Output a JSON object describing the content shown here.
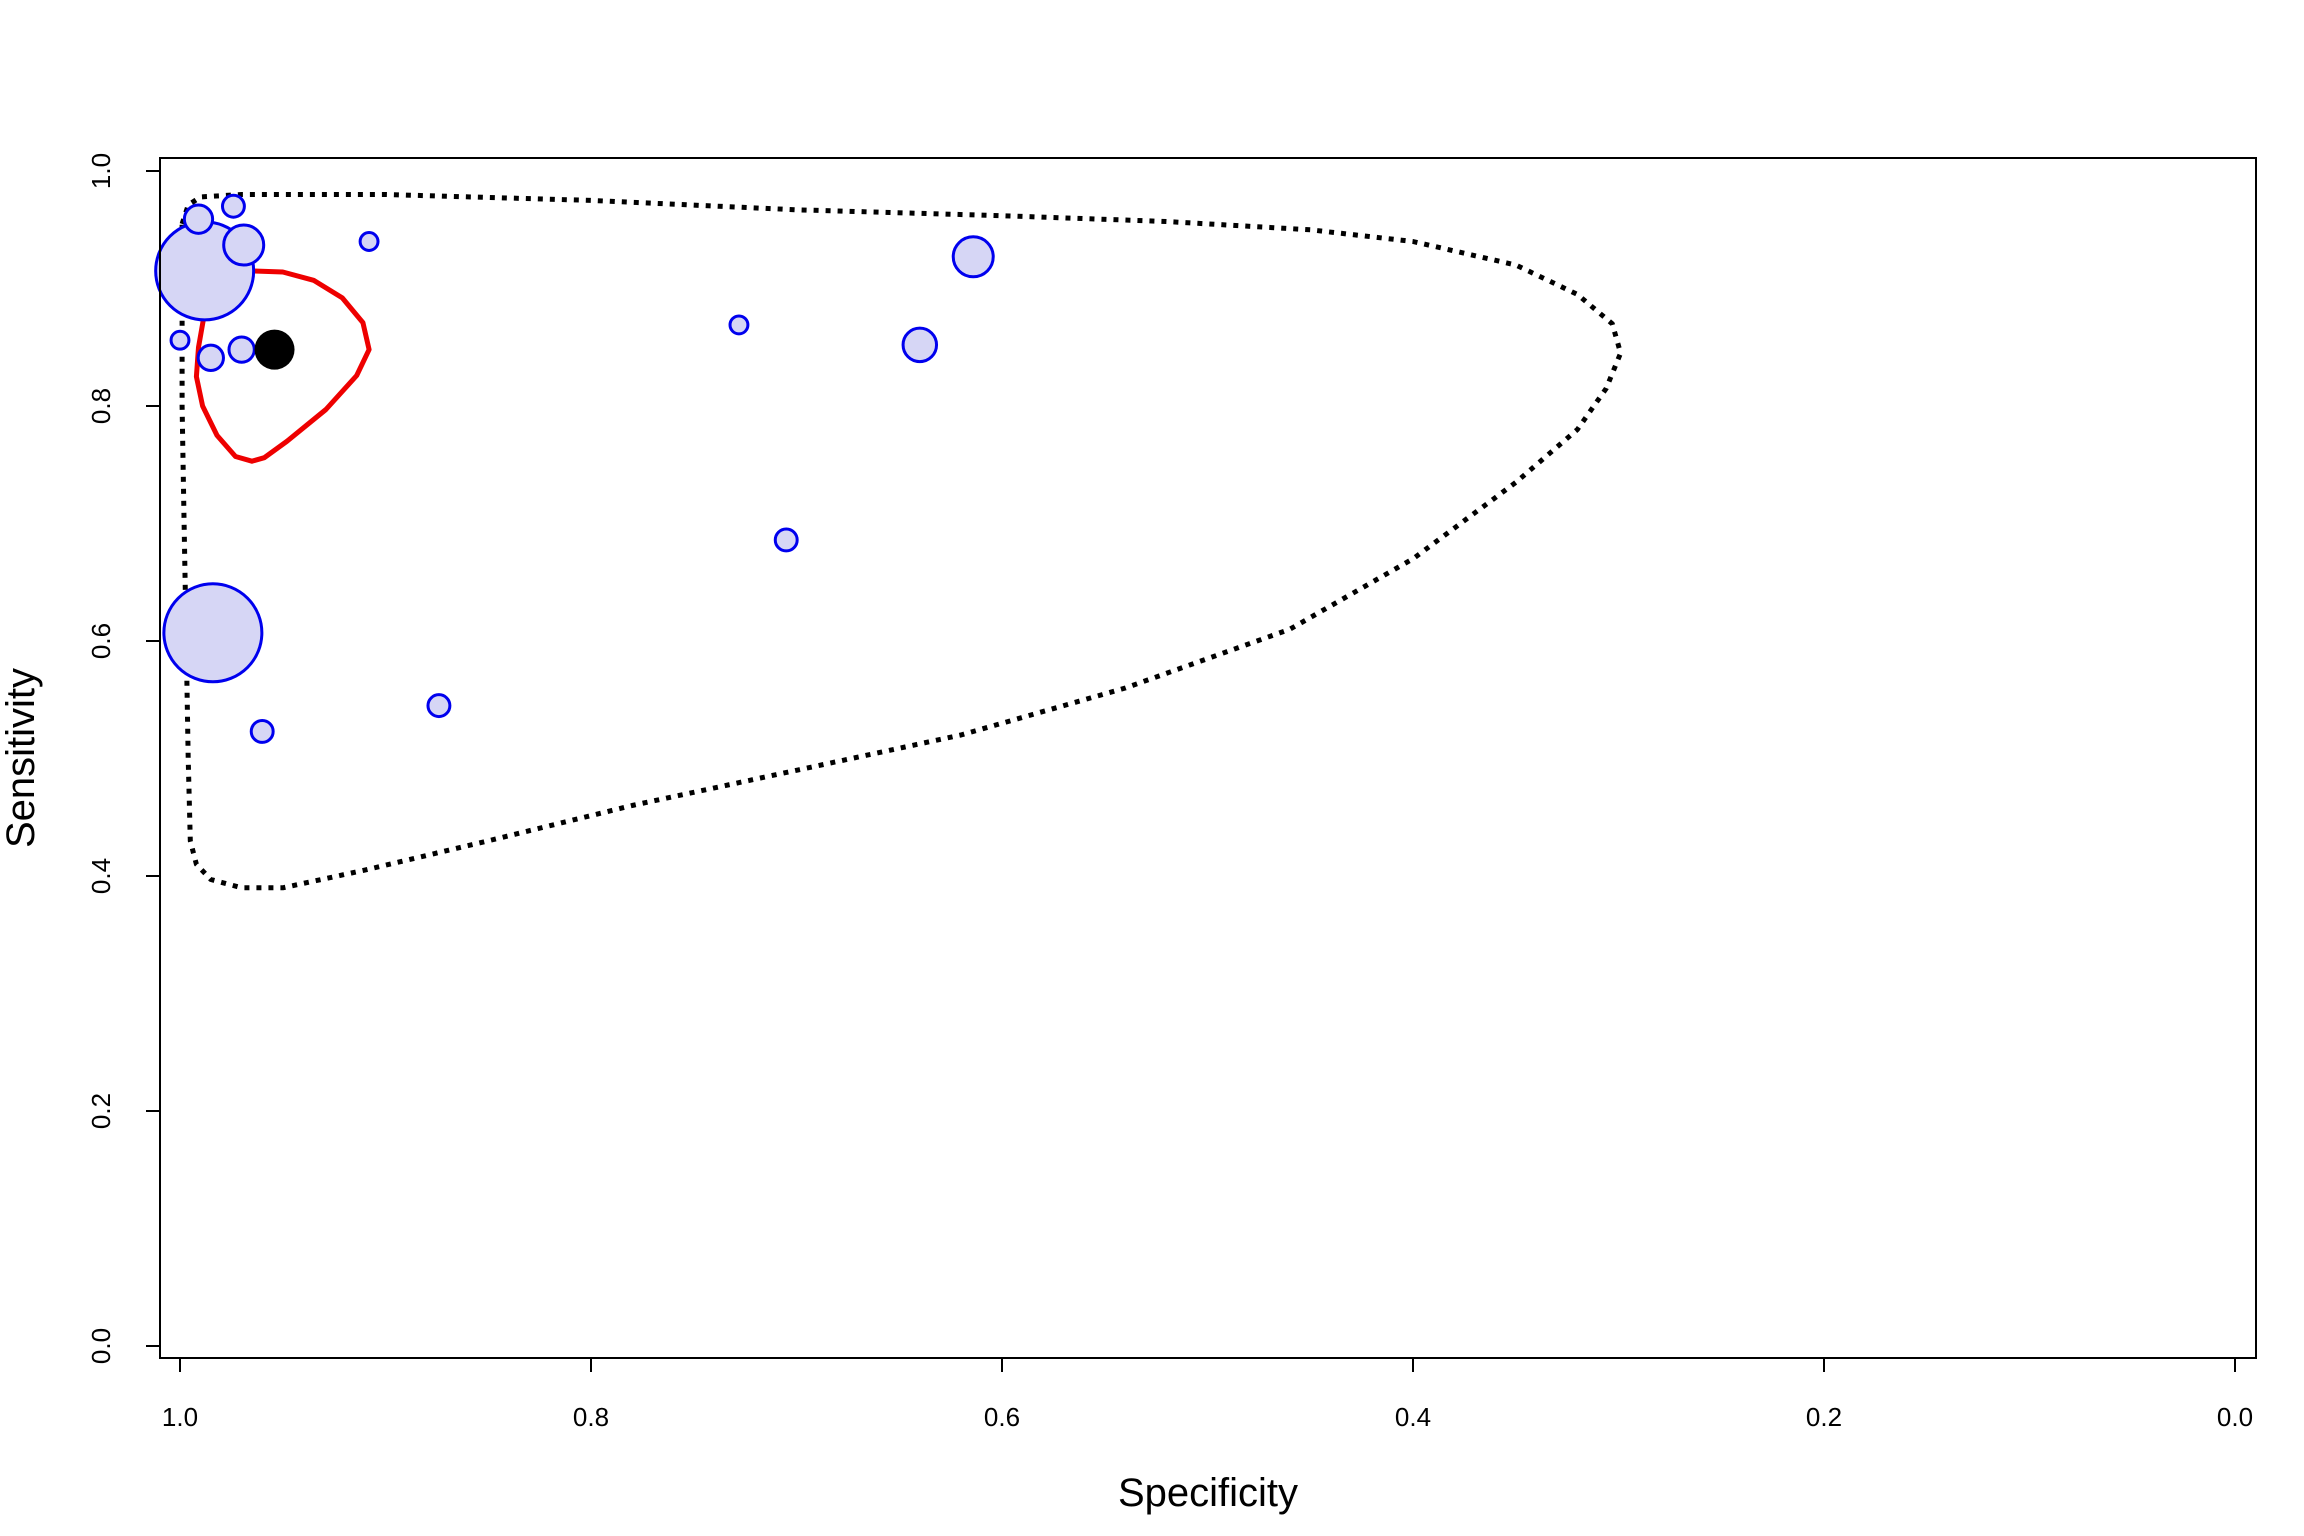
{
  "chart_data": {
    "type": "scatter",
    "title": "",
    "xlabel": "Specificity",
    "ylabel": "Sensitivity",
    "xlim": [
      1.0,
      0.0
    ],
    "ylim": [
      0.0,
      1.0
    ],
    "x_reversed": true,
    "x_ticks": [
      1.0,
      0.8,
      0.6,
      0.4,
      0.2,
      0.0
    ],
    "x_tick_labels": [
      "1.0",
      "0.8",
      "0.6",
      "0.4",
      "0.2",
      "0.0"
    ],
    "y_ticks": [
      0.0,
      0.2,
      0.4,
      0.6,
      0.8,
      1.0
    ],
    "y_tick_labels": [
      "0.0",
      "0.2",
      "0.4",
      "0.6",
      "0.8",
      "1.0"
    ],
    "grid": false,
    "colors": {
      "study_stroke": "#0000ee",
      "study_fill": "#d6d6f5",
      "confidence_region": "#ee0000",
      "prediction_region": "#000000",
      "summary_point": "#000000"
    },
    "studies": [
      {
        "specificity": 0.988,
        "sensitivity": 0.915,
        "weight": 6.0
      },
      {
        "specificity": 0.984,
        "sensitivity": 0.607,
        "weight": 6.0
      },
      {
        "specificity": 0.969,
        "sensitivity": 0.937,
        "weight": 1.0
      },
      {
        "specificity": 0.614,
        "sensitivity": 0.927,
        "weight": 1.0
      },
      {
        "specificity": 0.64,
        "sensitivity": 0.852,
        "weight": 0.7
      },
      {
        "specificity": 0.991,
        "sensitivity": 0.959,
        "weight": 0.5
      },
      {
        "specificity": 0.974,
        "sensitivity": 0.97,
        "weight": 0.3
      },
      {
        "specificity": 0.97,
        "sensitivity": 0.848,
        "weight": 0.4
      },
      {
        "specificity": 0.985,
        "sensitivity": 0.841,
        "weight": 0.4
      },
      {
        "specificity": 0.908,
        "sensitivity": 0.94,
        "weight": 0.2
      },
      {
        "specificity": 0.728,
        "sensitivity": 0.869,
        "weight": 0.2
      },
      {
        "specificity": 0.705,
        "sensitivity": 0.686,
        "weight": 0.3
      },
      {
        "specificity": 0.874,
        "sensitivity": 0.545,
        "weight": 0.3
      },
      {
        "specificity": 0.96,
        "sensitivity": 0.523,
        "weight": 0.3
      },
      {
        "specificity": 1.0,
        "sensitivity": 0.856,
        "weight": 0.2
      }
    ],
    "summary_point": {
      "specificity": 0.954,
      "sensitivity": 0.848
    },
    "confidence_region": [
      [
        0.991,
        0.85
      ],
      [
        0.988,
        0.88
      ],
      [
        0.985,
        0.901
      ],
      [
        0.978,
        0.91
      ],
      [
        0.966,
        0.915
      ],
      [
        0.95,
        0.914
      ],
      [
        0.935,
        0.907
      ],
      [
        0.921,
        0.892
      ],
      [
        0.911,
        0.871
      ],
      [
        0.908,
        0.848
      ],
      [
        0.914,
        0.826
      ],
      [
        0.929,
        0.797
      ],
      [
        0.948,
        0.77
      ],
      [
        0.959,
        0.756
      ],
      [
        0.965,
        0.753
      ],
      [
        0.973,
        0.757
      ],
      [
        0.982,
        0.775
      ],
      [
        0.989,
        0.8
      ],
      [
        0.992,
        0.825
      ],
      [
        0.991,
        0.85
      ]
    ],
    "prediction_region": [
      [
        0.999,
        0.955
      ],
      [
        0.996,
        0.971
      ],
      [
        0.99,
        0.978
      ],
      [
        0.97,
        0.98
      ],
      [
        0.9,
        0.98
      ],
      [
        0.8,
        0.975
      ],
      [
        0.7,
        0.967
      ],
      [
        0.6,
        0.962
      ],
      [
        0.52,
        0.957
      ],
      [
        0.45,
        0.95
      ],
      [
        0.4,
        0.94
      ],
      [
        0.35,
        0.92
      ],
      [
        0.32,
        0.895
      ],
      [
        0.303,
        0.87
      ],
      [
        0.299,
        0.845
      ],
      [
        0.306,
        0.815
      ],
      [
        0.32,
        0.78
      ],
      [
        0.35,
        0.735
      ],
      [
        0.4,
        0.67
      ],
      [
        0.46,
        0.61
      ],
      [
        0.54,
        0.56
      ],
      [
        0.62,
        0.52
      ],
      [
        0.7,
        0.49
      ],
      [
        0.78,
        0.46
      ],
      [
        0.85,
        0.43
      ],
      [
        0.91,
        0.405
      ],
      [
        0.95,
        0.39
      ],
      [
        0.97,
        0.39
      ],
      [
        0.985,
        0.397
      ],
      [
        0.992,
        0.41
      ],
      [
        0.995,
        0.43
      ],
      [
        0.996,
        0.5
      ],
      [
        0.997,
        0.6
      ],
      [
        0.998,
        0.7
      ],
      [
        0.999,
        0.8
      ],
      [
        0.999,
        0.9
      ],
      [
        0.999,
        0.955
      ]
    ]
  }
}
